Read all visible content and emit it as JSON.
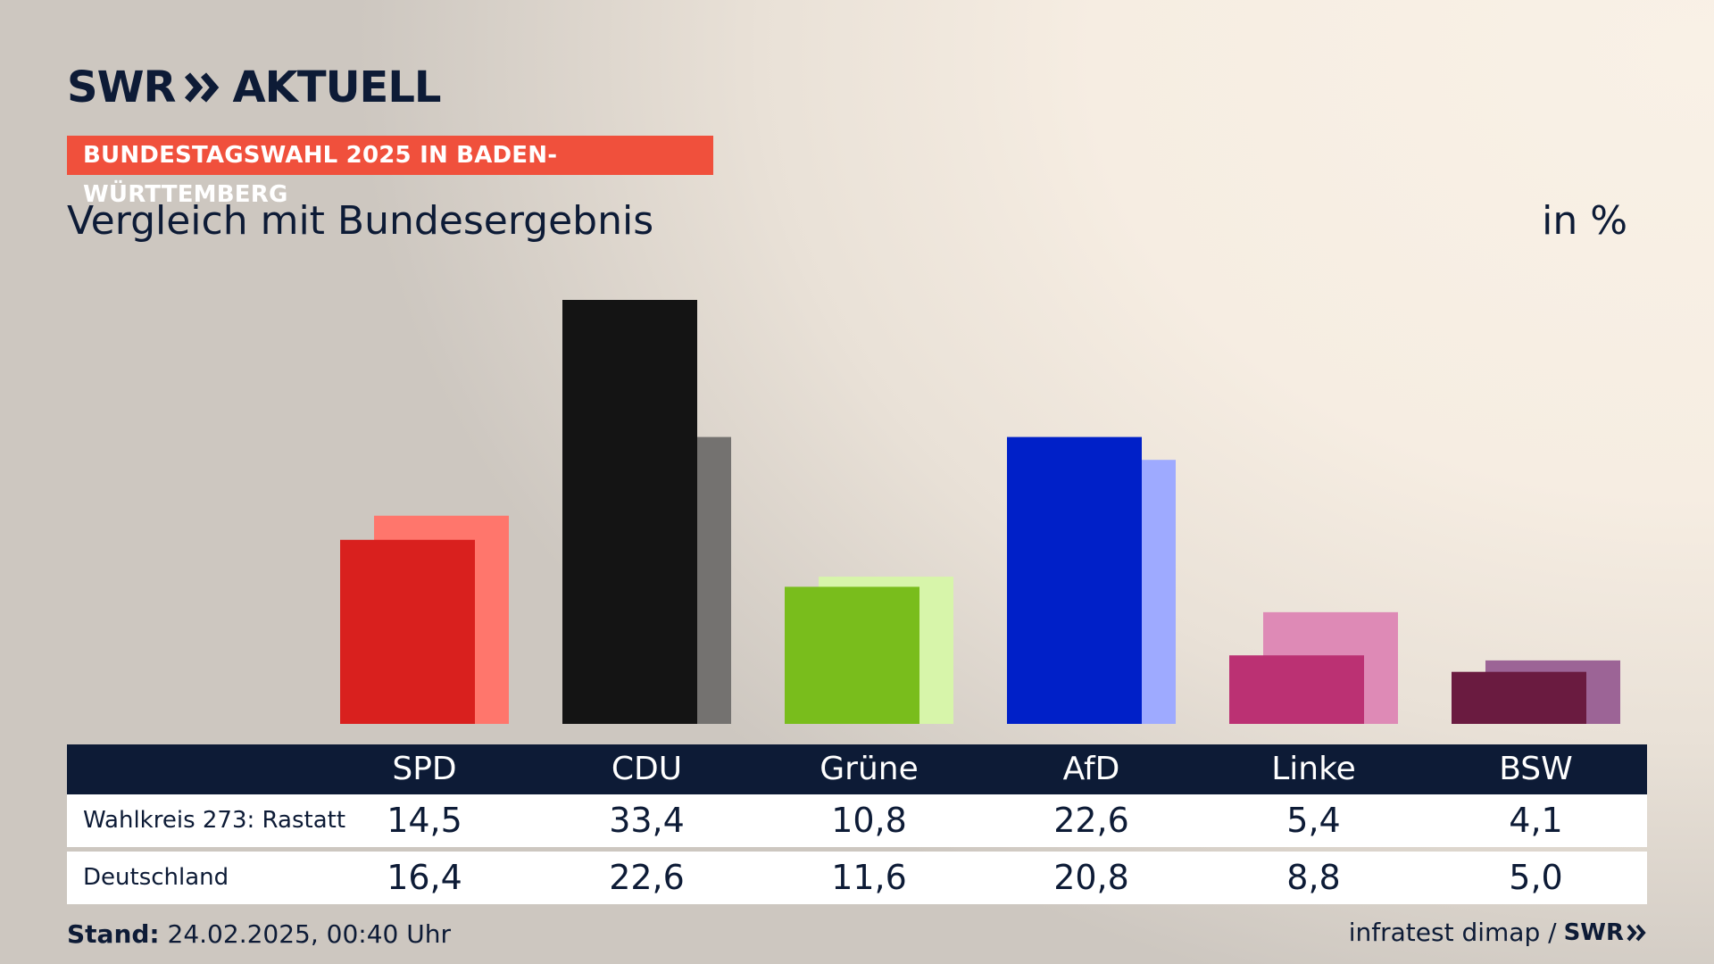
{
  "brand": {
    "logo_left": "SWR",
    "logo_right": "AKTUELL"
  },
  "header": {
    "badge": "BUNDESTAGSWAHL 2025 IN BADEN-WÜRTTEMBERG",
    "subtitle": "Vergleich mit Bundesergebnis",
    "unit": "in %"
  },
  "table": {
    "rows": [
      {
        "label": "Wahlkreis 273: Rastatt"
      },
      {
        "label": "Deutschland"
      }
    ]
  },
  "footer": {
    "stand_label": "Stand:",
    "stand_value": "24.02.2025, 00:40 Uhr",
    "source": "infratest dimap /",
    "source_logo": "SWR"
  },
  "chart_data": {
    "type": "bar",
    "categories": [
      "SPD",
      "CDU",
      "Grüne",
      "AfD",
      "Linke",
      "BSW"
    ],
    "series": [
      {
        "values": [
          14.5,
          33.4,
          10.8,
          22.6,
          5.4,
          4.1
        ],
        "labels": [
          "14,5",
          "33,4",
          "10,8",
          "22,6",
          "5,4",
          "4,1"
        ],
        "colors": [
          "#d9201e",
          "#141414",
          "#79bd1c",
          "#0020c8",
          "#bb3173",
          "#6a1b40"
        ]
      },
      {
        "values": [
          16.4,
          22.6,
          11.6,
          20.8,
          8.8,
          5.0
        ],
        "labels": [
          "16,4",
          "22,6",
          "11,6",
          "20,8",
          "8,8",
          "5,0"
        ],
        "colors": [
          "#ff766c",
          "#747270",
          "#d7f5aa",
          "#9eaaff",
          "#de8ab6",
          "#9c6496"
        ]
      }
    ],
    "ylim": [
      0,
      33.4
    ]
  }
}
